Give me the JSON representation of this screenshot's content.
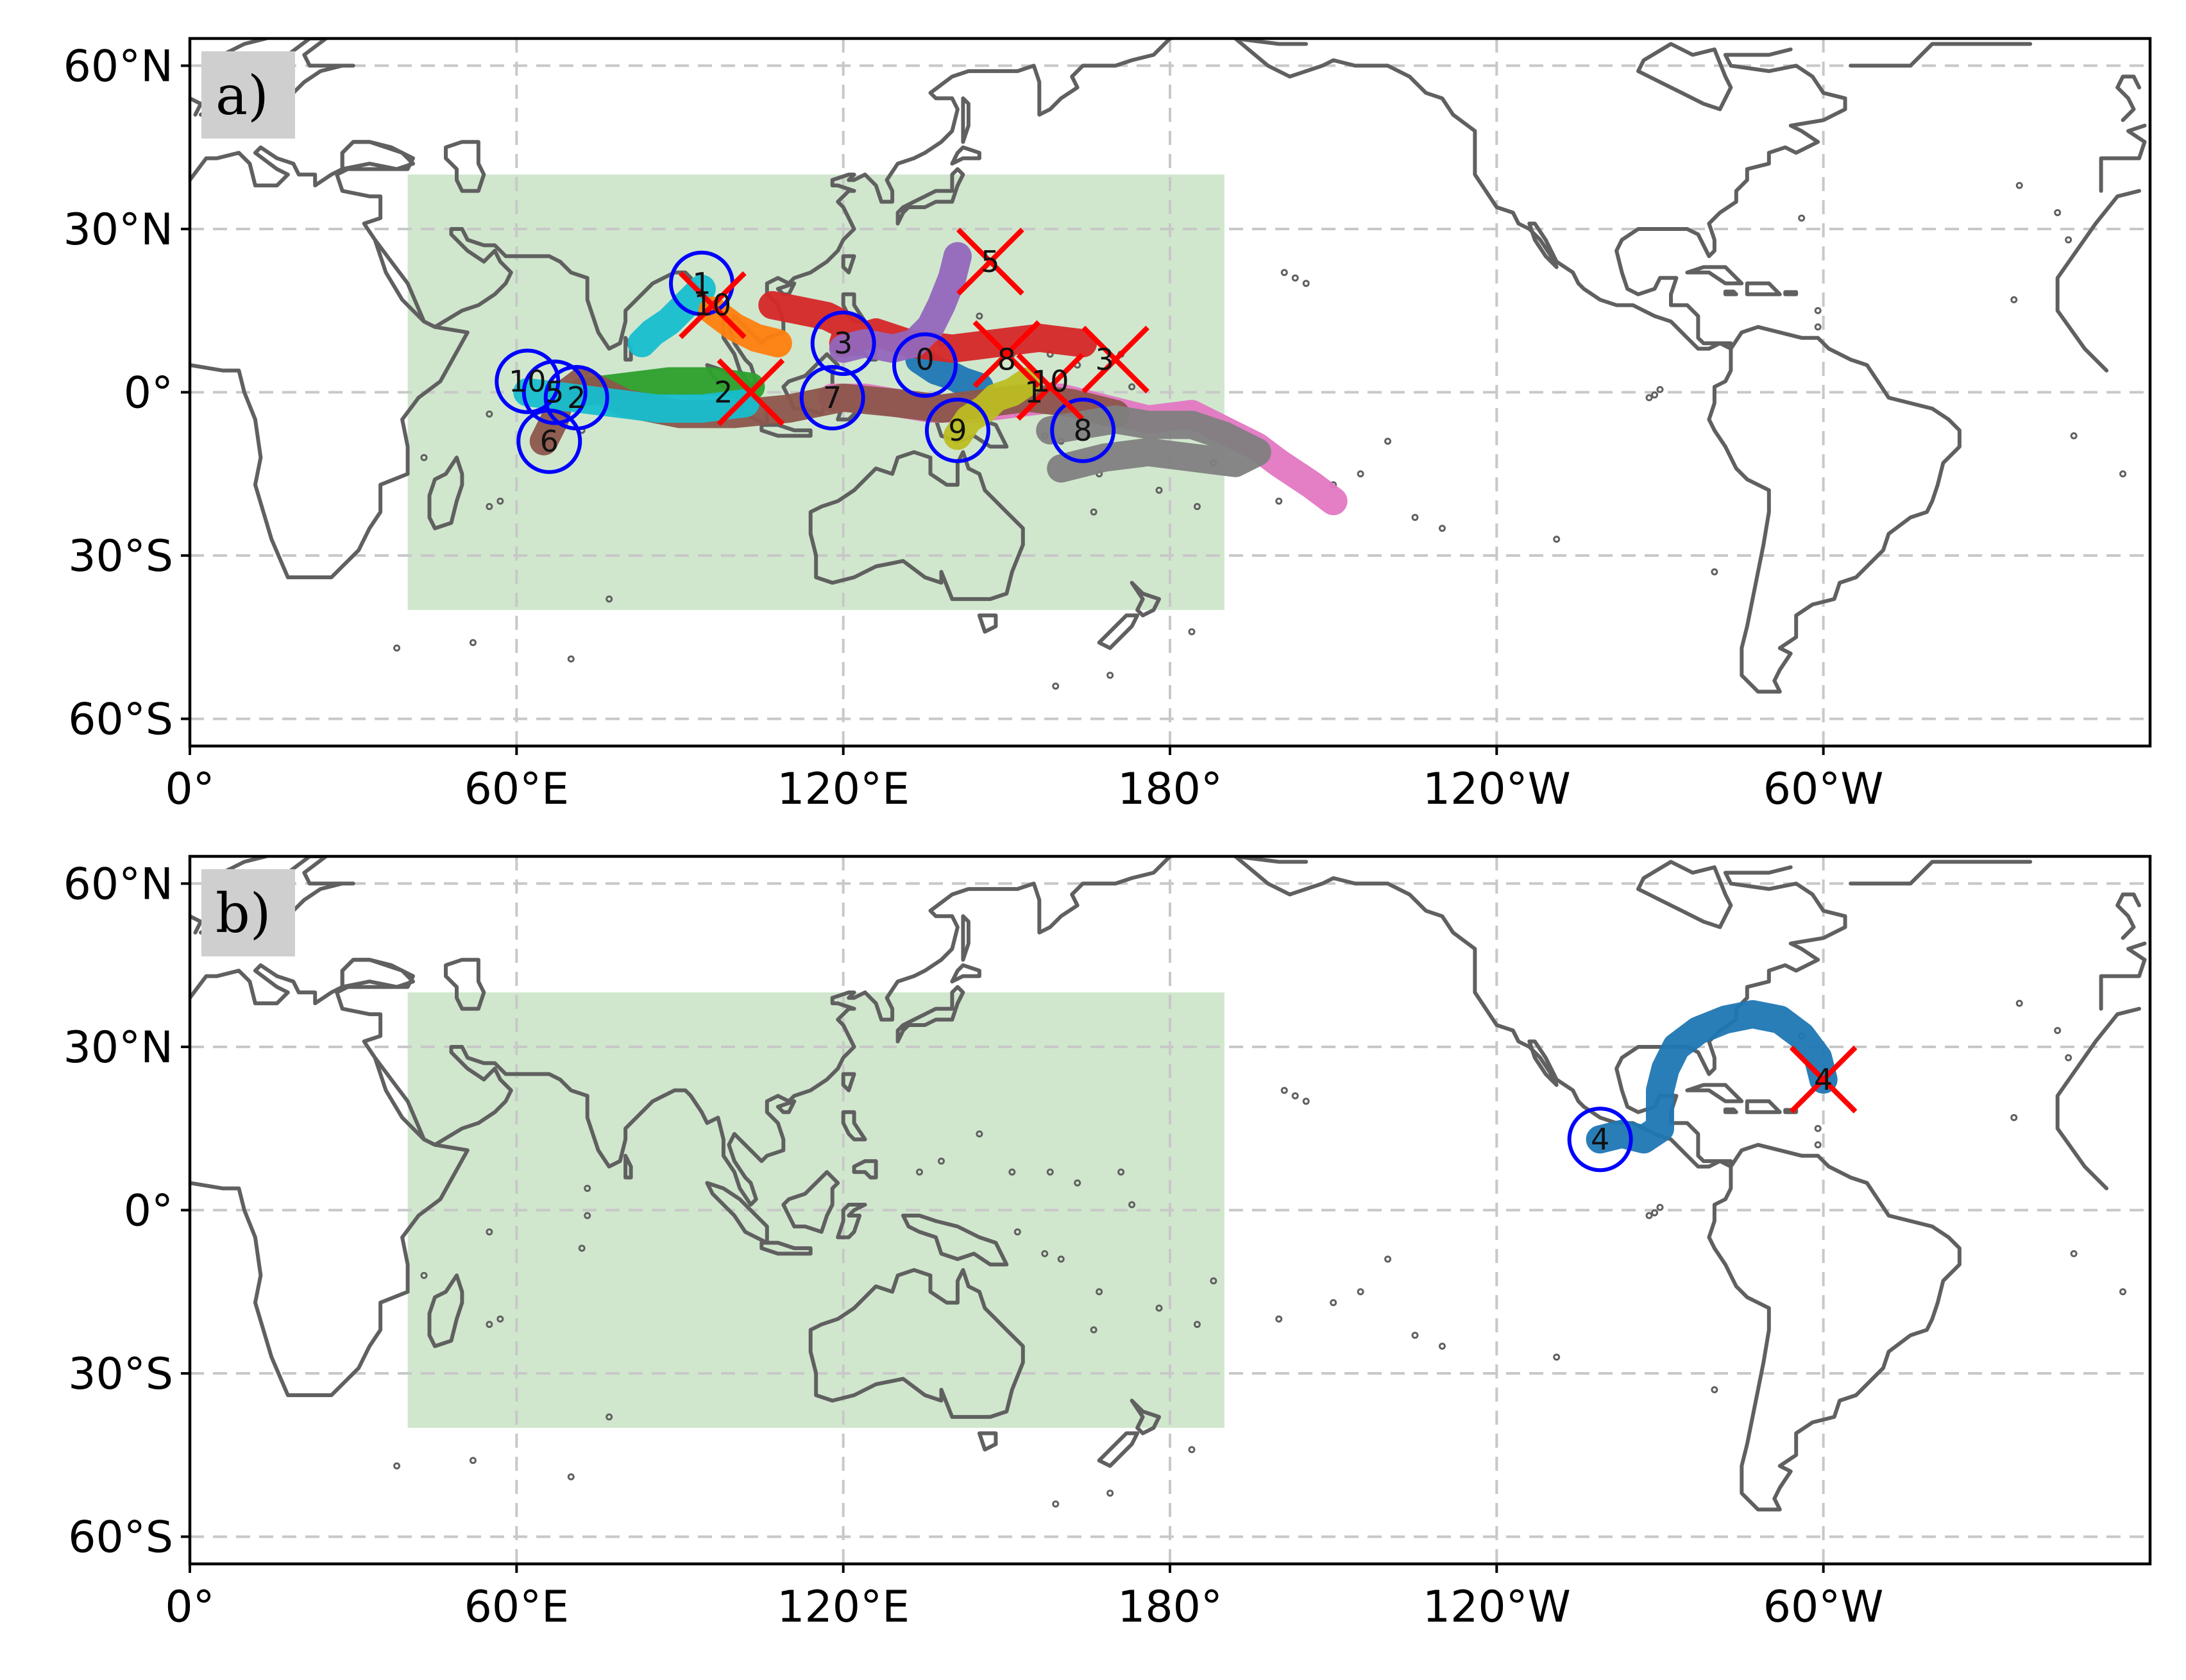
{
  "figure": {
    "x_ticks": [
      "0°",
      "60°E",
      "120°E",
      "180°",
      "120°W",
      "60°W"
    ],
    "y_ticks": [
      "60°N",
      "30°N",
      "0°",
      "30°S",
      "60°S"
    ],
    "region_box": {
      "lon": [
        40,
        190
      ],
      "lat": [
        -40,
        40
      ],
      "color": "#a9d3a4"
    },
    "colors": {
      "coast": "#606060",
      "start_circle": "#0000ff",
      "end_marker": "#ff0000",
      "grid": "#c8c8c8"
    }
  },
  "panels": [
    {
      "label": "a)",
      "tracks": [
        {
          "id": "0",
          "color": "#1f77b4",
          "points": [
            [
              134,
              6
            ],
            [
              137,
              4
            ],
            [
              140,
              3
            ],
            [
              142,
              2
            ],
            [
              145,
              1
            ]
          ]
        },
        {
          "id": "1",
          "color": "#17becf",
          "points": [
            [
              94,
              19
            ],
            [
              91,
              16
            ],
            [
              88,
              13
            ],
            [
              85,
              11
            ],
            [
              83,
              9
            ]
          ]
        },
        {
          "id": "10",
          "color": "#ff7f0e",
          "points": [
            [
              96,
              15
            ],
            [
              100,
              12
            ],
            [
              104,
              10
            ],
            [
              108,
              9
            ]
          ]
        },
        {
          "id": "3",
          "color": "#d62728",
          "points": [
            [
              107,
              16
            ],
            [
              112,
              15
            ],
            [
              117,
              14
            ],
            [
              121,
              12
            ],
            [
              120,
              9
            ],
            [
              126,
              11
            ],
            [
              132,
              9
            ],
            [
              140,
              8
            ],
            [
              148,
              9
            ],
            [
              156,
              10
            ],
            [
              164,
              9
            ]
          ]
        },
        {
          "id": "5",
          "color": "#9467bd",
          "points": [
            [
              141,
              25
            ],
            [
              140,
              21
            ],
            [
              138,
              16
            ],
            [
              136,
              12
            ],
            [
              133,
              9
            ],
            [
              129,
              8
            ],
            [
              124,
              9
            ],
            [
              120,
              8
            ]
          ]
        },
        {
          "id": "2",
          "color": "#2ca02c",
          "points": [
            [
              72,
              0
            ],
            [
              80,
              1
            ],
            [
              88,
              2
            ],
            [
              96,
              2
            ],
            [
              103,
              1
            ]
          ]
        },
        {
          "id": "7",
          "color": "#e377c2",
          "points": [
            [
              118,
              -1
            ],
            [
              124,
              -1
            ],
            [
              130,
              -2
            ],
            [
              136,
              -3
            ],
            [
              144,
              -3
            ],
            [
              152,
              -2
            ],
            [
              160,
              -1
            ],
            [
              168,
              -3
            ],
            [
              176,
              -5
            ],
            [
              184,
              -4
            ],
            [
              190,
              -7
            ],
            [
              196,
              -10
            ],
            [
              200,
              -13
            ],
            [
              206,
              -17
            ],
            [
              210,
              -20
            ]
          ]
        },
        {
          "id": "6",
          "color": "#8c564b",
          "points": [
            [
              65,
              -9
            ],
            [
              67,
              -5
            ],
            [
              68,
              -1
            ],
            [
              72,
              2
            ],
            [
              80,
              -2
            ],
            [
              90,
              -4
            ],
            [
              100,
              -4
            ],
            [
              110,
              -3
            ],
            [
              120,
              -1
            ],
            [
              130,
              -2
            ],
            [
              138,
              -3
            ],
            [
              146,
              -2
            ],
            [
              154,
              -1
            ],
            [
              162,
              -2
            ],
            [
              170,
              -4
            ]
          ]
        },
        {
          "id": "8",
          "color": "#7f7f7f",
          "points": [
            [
              158,
              -7
            ],
            [
              164,
              -6
            ],
            [
              170,
              -5
            ],
            [
              176,
              -6
            ],
            [
              184,
              -6
            ],
            [
              190,
              -8
            ],
            [
              196,
              -11
            ],
            [
              192,
              -13
            ],
            [
              184,
              -12
            ],
            [
              176,
              -11
            ],
            [
              168,
              -12
            ],
            [
              160,
              -14
            ]
          ]
        },
        {
          "id": "9",
          "color": "#bcbd22",
          "points": [
            [
              141,
              -8
            ],
            [
              143,
              -5
            ],
            [
              146,
              -3
            ],
            [
              148,
              -1
            ],
            [
              151,
              0
            ],
            [
              154,
              2
            ]
          ]
        },
        {
          "id": "4",
          "color": "#17becf",
          "points": [
            [
              62,
              0
            ],
            [
              70,
              -1
            ],
            [
              78,
              -2
            ],
            [
              86,
              -3
            ],
            [
              94,
              -3
            ],
            [
              102,
              -2
            ]
          ]
        }
      ],
      "starts": [
        {
          "id": "1",
          "lon": 94,
          "lat": 20
        },
        {
          "id": "10",
          "lon": 62,
          "lat": 2
        },
        {
          "id": "5",
          "lon": 67,
          "lat": 0
        },
        {
          "id": "2",
          "lon": 71,
          "lat": -1
        },
        {
          "id": "6",
          "lon": 66,
          "lat": -9
        },
        {
          "id": "3",
          "lon": 120,
          "lat": 9
        },
        {
          "id": "7",
          "lon": 118,
          "lat": -1
        },
        {
          "id": "0",
          "lon": 135,
          "lat": 5
        },
        {
          "id": "9",
          "lon": 141,
          "lat": -7
        },
        {
          "id": "8",
          "lon": 164,
          "lat": -7
        }
      ],
      "labels": [
        {
          "text": "1",
          "lon": 94,
          "lat": 20
        },
        {
          "text": "10",
          "lon": 96,
          "lat": 16
        },
        {
          "text": "3",
          "lon": 120,
          "lat": 9
        },
        {
          "text": "5",
          "lon": 147,
          "lat": 24
        },
        {
          "text": "10",
          "lon": 62,
          "lat": 2
        },
        {
          "text": "5",
          "lon": 67,
          "lat": 0
        },
        {
          "text": "2",
          "lon": 71,
          "lat": -1
        },
        {
          "text": "6",
          "lon": 66,
          "lat": -9
        },
        {
          "text": "2",
          "lon": 98,
          "lat": 0
        },
        {
          "text": "7",
          "lon": 118,
          "lat": -1
        },
        {
          "text": "0",
          "lon": 135,
          "lat": 6
        },
        {
          "text": "8",
          "lon": 150,
          "lat": 6
        },
        {
          "text": "3",
          "lon": 168,
          "lat": 6
        },
        {
          "text": "9",
          "lon": 141,
          "lat": -7
        },
        {
          "text": "8",
          "lon": 164,
          "lat": -7
        },
        {
          "text": "10",
          "lon": 158,
          "lat": 2
        },
        {
          "text": "1",
          "lon": 155,
          "lat": 0
        }
      ],
      "ends": [
        {
          "lon": 147,
          "lat": 24
        },
        {
          "lon": 96,
          "lat": 16
        },
        {
          "lon": 150,
          "lat": 7
        },
        {
          "lon": 170,
          "lat": 6
        },
        {
          "lon": 158,
          "lat": 1
        },
        {
          "lon": 103,
          "lat": 0
        }
      ]
    },
    {
      "label": "b)",
      "tracks": [
        {
          "id": "4",
          "color": "#1f77b4",
          "points": [
            [
              -101,
              13
            ],
            [
              -97,
              14
            ],
            [
              -93,
              13
            ],
            [
              -90,
              15
            ],
            [
              -90,
              18
            ],
            [
              -90,
              22
            ],
            [
              -89,
              26
            ],
            [
              -87,
              30
            ],
            [
              -83,
              33
            ],
            [
              -78,
              35
            ],
            [
              -73,
              36
            ],
            [
              -68,
              35
            ],
            [
              -64,
              32
            ],
            [
              -61,
              28
            ],
            [
              -60,
              24
            ]
          ]
        }
      ],
      "starts": [
        {
          "id": "4",
          "lon": -101,
          "lat": 13
        }
      ],
      "labels": [
        {
          "text": "4",
          "lon": -101,
          "lat": 13
        },
        {
          "text": "4",
          "lon": -60,
          "lat": 24
        }
      ],
      "ends": [
        {
          "lon": -60,
          "lat": 24
        }
      ]
    }
  ]
}
